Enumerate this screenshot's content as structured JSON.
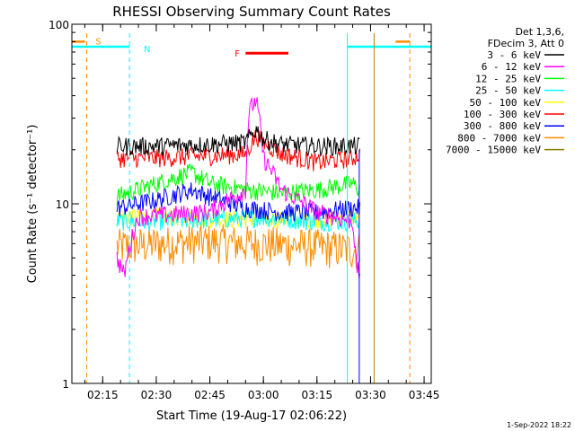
{
  "chart_data": {
    "type": "line",
    "title": "RHESSI Observing Summary Count Rates",
    "xlabel": "Start Time (19-Aug-17 02:06:22)",
    "ylabel": "Count Rate (s⁻¹ detector⁻¹)",
    "y_scale": "log",
    "ylim": [
      1,
      100
    ],
    "y_ticks": [
      1,
      10,
      100
    ],
    "y_tick_labels": [
      "1",
      "10",
      "100"
    ],
    "xlim": [
      "02:06:22",
      "03:47:00"
    ],
    "x_ticks": [
      "02:15",
      "02:30",
      "02:45",
      "03:00",
      "03:15",
      "03:30",
      "03:45"
    ],
    "x_tick_labels": [
      "02:15",
      "02:30",
      "02:45",
      "03:00",
      "03:15",
      "03:30",
      "03:45"
    ],
    "legend_header": [
      "Det 1,3,6,",
      "FDecim 3, Att 0"
    ],
    "legend_position": "right",
    "grid": false,
    "data_start": "02:19:00",
    "data_end": "03:27:00",
    "series": [
      {
        "name": "3 - 6 keV",
        "color": "#000000",
        "x": [
          "02:19",
          "02:30",
          "02:45",
          "02:55",
          "02:58",
          "03:00",
          "03:05",
          "03:15",
          "03:25",
          "03:27"
        ],
        "y": [
          21,
          21,
          21.5,
          22,
          26,
          23,
          21.5,
          21,
          21,
          21
        ]
      },
      {
        "name": "6 - 12 keV",
        "color": "#ff00ff",
        "x": [
          "02:19",
          "02:21",
          "02:25",
          "02:45",
          "02:55",
          "02:56",
          "02:58",
          "03:00",
          "03:05",
          "03:15",
          "03:25",
          "03:26",
          "03:27"
        ],
        "y": [
          5,
          4,
          8.5,
          9,
          12,
          33,
          38,
          18,
          12,
          9,
          8,
          4.5,
          4
        ]
      },
      {
        "name": "12 - 25 keV",
        "color": "#00ff00",
        "x": [
          "02:19",
          "02:30",
          "02:40",
          "02:45",
          "02:55",
          "03:05",
          "03:15",
          "03:25",
          "03:27"
        ],
        "y": [
          11,
          13,
          15,
          13,
          12,
          11.5,
          12,
          13,
          12
        ]
      },
      {
        "name": "25 - 50 keV",
        "color": "#00ffff",
        "x": [
          "02:19",
          "02:30",
          "02:45",
          "03:00",
          "03:15",
          "03:27"
        ],
        "y": [
          8,
          8,
          8.2,
          8.4,
          8,
          8
        ]
      },
      {
        "name": "50 - 100 keV",
        "color": "#ffff00",
        "x": [
          "02:19",
          "02:30",
          "02:45",
          "03:00",
          "03:15",
          "03:27"
        ],
        "y": [
          8.5,
          8.5,
          8.3,
          8.2,
          8.3,
          8.5
        ]
      },
      {
        "name": "100 - 300 keV",
        "color": "#ff0000",
        "x": [
          "02:19",
          "02:30",
          "02:45",
          "02:55",
          "02:58",
          "03:00",
          "03:05",
          "03:15",
          "03:25",
          "03:27"
        ],
        "y": [
          18,
          18,
          18.5,
          19,
          24,
          22,
          19,
          17,
          18,
          19
        ]
      },
      {
        "name": "300 - 800 keV",
        "color": "#0000ff",
        "x": [
          "02:19",
          "02:30",
          "02:40",
          "02:45",
          "02:55",
          "03:05",
          "03:15",
          "03:25",
          "03:27"
        ],
        "y": [
          9.5,
          10.5,
          12,
          11,
          9.5,
          9,
          9,
          9.5,
          9.5
        ]
      },
      {
        "name": "800 - 7000 keV",
        "color": "#ff8c00",
        "x": [
          "02:19",
          "02:30",
          "02:45",
          "03:00",
          "03:15",
          "03:25",
          "03:27"
        ],
        "y": [
          5.8,
          6,
          6.2,
          6,
          5.8,
          5.6,
          5.6
        ]
      },
      {
        "name": "7000 - 15000 keV",
        "color": "#8b7d00",
        "x": [],
        "y": []
      }
    ],
    "flags": [
      {
        "label": "S",
        "color": "#ff8c00",
        "x": [
          "02:06:22",
          "02:10:00"
        ]
      },
      {
        "label": "N",
        "color": "#00ffff",
        "x": [
          "02:06:22",
          "02:22:30"
        ]
      },
      {
        "label": "N",
        "color": "#00ffff",
        "x": [
          "03:23:30",
          "03:47:00"
        ]
      },
      {
        "label": "S",
        "color": "#ff8c00",
        "x": [
          "03:37:00",
          "03:41:00"
        ]
      },
      {
        "label": "F",
        "color": "#ff0000",
        "x": [
          "02:55:00",
          "03:07:00"
        ]
      }
    ],
    "vlines": [
      {
        "x": "02:10:30",
        "color": "#ff8c00",
        "style": "dashed"
      },
      {
        "x": "02:22:30",
        "color": "#00ffff",
        "style": "dashed"
      },
      {
        "x": "03:23:30",
        "color": "#00ffff",
        "style": "solid"
      },
      {
        "x": "03:26:50",
        "color": "#0000ff",
        "style": "solid"
      },
      {
        "x": "03:31:00",
        "color": "#b8860b",
        "style": "solid"
      },
      {
        "x": "03:41:00",
        "color": "#ff8c00",
        "style": "dashed"
      }
    ]
  },
  "footer_date": "1-Sep-2022 18:22"
}
